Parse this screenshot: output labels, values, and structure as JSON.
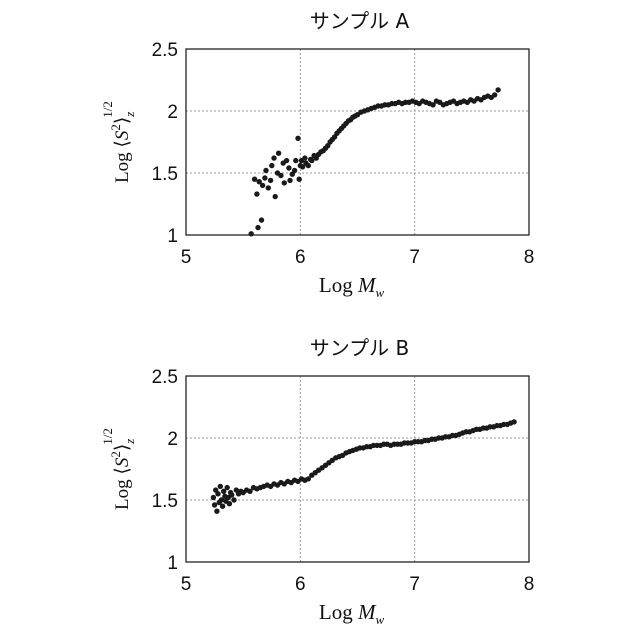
{
  "colors": {
    "marker": "#1a1a1a",
    "grid": "#9a9a9a",
    "frame": "#222222"
  },
  "chart_data": [
    {
      "type": "scatter",
      "title": "サンプル A",
      "xlabel": {
        "prefix": "Log ",
        "var": "M",
        "sub": "w"
      },
      "ylabel": {
        "prefix": "Log ⟨",
        "var": "S",
        "sup": "2",
        "close": "⟩",
        "sub": "z",
        "exp": "1/2"
      },
      "xlim": [
        5,
        8
      ],
      "ylim": [
        1,
        2.5
      ],
      "xticks": [
        "5",
        "6",
        "7",
        "8"
      ],
      "yticks": [
        "1",
        "1.5",
        "2",
        "2.5"
      ],
      "grid": true,
      "series": [
        {
          "x": [
            5.57,
            5.63,
            5.66,
            5.6,
            5.62,
            5.64,
            5.67,
            5.69,
            5.7,
            5.72,
            5.74,
            5.75,
            5.77,
            5.78,
            5.8,
            5.81,
            5.83,
            5.85,
            5.86,
            5.88,
            5.9,
            5.91,
            5.93,
            5.95,
            5.96,
            5.98,
            5.99,
            6.0,
            6.01,
            6.02,
            6.04,
            6.05,
            6.07,
            6.09,
            6.1,
            6.12,
            6.14,
            6.16,
            6.18,
            6.2,
            6.22,
            6.24,
            6.26,
            6.28,
            6.3,
            6.32,
            6.34,
            6.36,
            6.38,
            6.4,
            6.42,
            6.44,
            6.46,
            6.48,
            6.5,
            6.53,
            6.56,
            6.59,
            6.62,
            6.65,
            6.68,
            6.71,
            6.74,
            6.77,
            6.8,
            6.83,
            6.86,
            6.89,
            6.92,
            6.95,
            6.98,
            7.01,
            7.04,
            7.07,
            7.1,
            7.13,
            7.16,
            7.19,
            7.22,
            7.25,
            7.28,
            7.31,
            7.34,
            7.37,
            7.4,
            7.43,
            7.46,
            7.49,
            7.52,
            7.55,
            7.58,
            7.61,
            7.64,
            7.67,
            7.7,
            7.73
          ],
          "y": [
            1.01,
            1.06,
            1.12,
            1.45,
            1.33,
            1.43,
            1.4,
            1.46,
            1.52,
            1.38,
            1.44,
            1.56,
            1.62,
            1.31,
            1.5,
            1.66,
            1.48,
            1.58,
            1.42,
            1.6,
            1.54,
            1.44,
            1.49,
            1.52,
            1.6,
            1.78,
            1.45,
            1.56,
            1.6,
            1.55,
            1.62,
            1.58,
            1.56,
            1.61,
            1.6,
            1.64,
            1.62,
            1.65,
            1.67,
            1.68,
            1.7,
            1.72,
            1.75,
            1.77,
            1.79,
            1.82,
            1.84,
            1.86,
            1.88,
            1.9,
            1.92,
            1.93,
            1.95,
            1.96,
            1.97,
            1.99,
            2.0,
            2.01,
            2.02,
            2.03,
            2.04,
            2.04,
            2.05,
            2.05,
            2.06,
            2.06,
            2.07,
            2.06,
            2.07,
            2.07,
            2.08,
            2.07,
            2.06,
            2.08,
            2.07,
            2.06,
            2.05,
            2.08,
            2.07,
            2.05,
            2.06,
            2.07,
            2.08,
            2.06,
            2.07,
            2.08,
            2.07,
            2.09,
            2.08,
            2.1,
            2.09,
            2.11,
            2.12,
            2.11,
            2.13,
            2.17
          ]
        }
      ]
    },
    {
      "type": "scatter",
      "title": "サンプル B",
      "xlabel": {
        "prefix": "Log ",
        "var": "M",
        "sub": "w"
      },
      "ylabel": {
        "prefix": "Log ⟨",
        "var": "S",
        "sup": "2",
        "close": "⟩",
        "sub": "z",
        "exp": "1/2"
      },
      "xlim": [
        5,
        8
      ],
      "ylim": [
        1,
        2.5
      ],
      "xticks": [
        "5",
        "6",
        "7",
        "8"
      ],
      "yticks": [
        "1",
        "1.5",
        "2",
        "2.5"
      ],
      "grid": true,
      "series": [
        {
          "x": [
            5.24,
            5.25,
            5.26,
            5.27,
            5.28,
            5.29,
            5.3,
            5.31,
            5.32,
            5.33,
            5.34,
            5.35,
            5.36,
            5.37,
            5.38,
            5.39,
            5.4,
            5.42,
            5.44,
            5.46,
            5.48,
            5.5,
            5.53,
            5.56,
            5.59,
            5.62,
            5.65,
            5.68,
            5.71,
            5.74,
            5.77,
            5.8,
            5.83,
            5.86,
            5.89,
            5.92,
            5.95,
            5.98,
            6.01,
            6.04,
            6.07,
            6.1,
            6.13,
            6.16,
            6.19,
            6.22,
            6.25,
            6.28,
            6.31,
            6.34,
            6.37,
            6.4,
            6.43,
            6.46,
            6.49,
            6.52,
            6.55,
            6.58,
            6.61,
            6.64,
            6.67,
            6.7,
            6.73,
            6.76,
            6.79,
            6.82,
            6.85,
            6.88,
            6.91,
            6.94,
            6.97,
            7.0,
            7.03,
            7.06,
            7.09,
            7.12,
            7.15,
            7.18,
            7.21,
            7.24,
            7.27,
            7.3,
            7.33,
            7.36,
            7.39,
            7.42,
            7.45,
            7.48,
            7.51,
            7.54,
            7.57,
            7.6,
            7.63,
            7.66,
            7.69,
            7.72,
            7.75,
            7.78,
            7.81,
            7.84,
            7.87
          ],
          "y": [
            1.52,
            1.46,
            1.58,
            1.41,
            1.55,
            1.48,
            1.61,
            1.5,
            1.45,
            1.57,
            1.53,
            1.49,
            1.6,
            1.52,
            1.47,
            1.56,
            1.54,
            1.5,
            1.58,
            1.55,
            1.57,
            1.56,
            1.58,
            1.57,
            1.6,
            1.59,
            1.6,
            1.61,
            1.62,
            1.61,
            1.63,
            1.62,
            1.64,
            1.63,
            1.65,
            1.64,
            1.66,
            1.65,
            1.67,
            1.66,
            1.67,
            1.7,
            1.72,
            1.74,
            1.76,
            1.78,
            1.8,
            1.82,
            1.84,
            1.85,
            1.86,
            1.88,
            1.89,
            1.9,
            1.91,
            1.92,
            1.92,
            1.93,
            1.93,
            1.94,
            1.94,
            1.94,
            1.95,
            1.95,
            1.94,
            1.95,
            1.95,
            1.95,
            1.96,
            1.96,
            1.96,
            1.97,
            1.97,
            1.97,
            1.98,
            1.98,
            1.99,
            1.99,
            2.0,
            2.0,
            2.01,
            2.01,
            2.02,
            2.02,
            2.03,
            2.04,
            2.05,
            2.05,
            2.06,
            2.07,
            2.07,
            2.08,
            2.08,
            2.09,
            2.09,
            2.1,
            2.1,
            2.11,
            2.11,
            2.12,
            2.13
          ]
        }
      ]
    }
  ]
}
